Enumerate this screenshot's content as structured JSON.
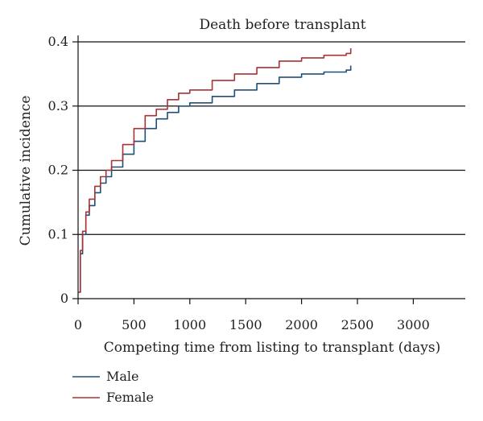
{
  "chart_data": {
    "type": "line",
    "title": "Death before transplant",
    "xlabel": "Competing time from listing to transplant (days)",
    "ylabel": "Cumulative incidence",
    "xlim": [
      0,
      3500
    ],
    "ylim": [
      0,
      0.4
    ],
    "xticks": [
      0,
      500,
      1000,
      1500,
      2000,
      2500,
      3000
    ],
    "yticks": [
      0,
      0.1,
      0.2,
      0.3,
      0.4
    ],
    "xtick_labels": [
      "0",
      "500",
      "1000",
      "1500",
      "2000",
      "2500",
      "3000"
    ],
    "ytick_labels": [
      "0",
      "0.1",
      "0.2",
      "0.3",
      "0.4"
    ],
    "grid": "horizontal",
    "legend_position": "bottom-left",
    "series": [
      {
        "name": "Male",
        "color": "#1f4e79",
        "x": [
          5,
          20,
          40,
          70,
          100,
          150,
          200,
          250,
          300,
          400,
          500,
          600,
          700,
          800,
          900,
          1000,
          1200,
          1400,
          1600,
          1800,
          2000,
          2200,
          2400,
          2440
        ],
        "y": [
          0.01,
          0.07,
          0.1,
          0.13,
          0.145,
          0.165,
          0.18,
          0.19,
          0.205,
          0.225,
          0.245,
          0.265,
          0.28,
          0.29,
          0.3,
          0.305,
          0.315,
          0.325,
          0.335,
          0.345,
          0.35,
          0.353,
          0.356,
          0.363
        ]
      },
      {
        "name": "Female",
        "color": "#a83236",
        "x": [
          5,
          20,
          40,
          70,
          100,
          150,
          200,
          250,
          300,
          400,
          500,
          600,
          700,
          800,
          900,
          1000,
          1200,
          1400,
          1600,
          1800,
          2000,
          2200,
          2400,
          2440
        ],
        "y": [
          0.01,
          0.075,
          0.105,
          0.135,
          0.155,
          0.175,
          0.19,
          0.2,
          0.215,
          0.24,
          0.265,
          0.285,
          0.295,
          0.31,
          0.32,
          0.325,
          0.34,
          0.35,
          0.36,
          0.37,
          0.375,
          0.379,
          0.382,
          0.39
        ]
      }
    ]
  }
}
